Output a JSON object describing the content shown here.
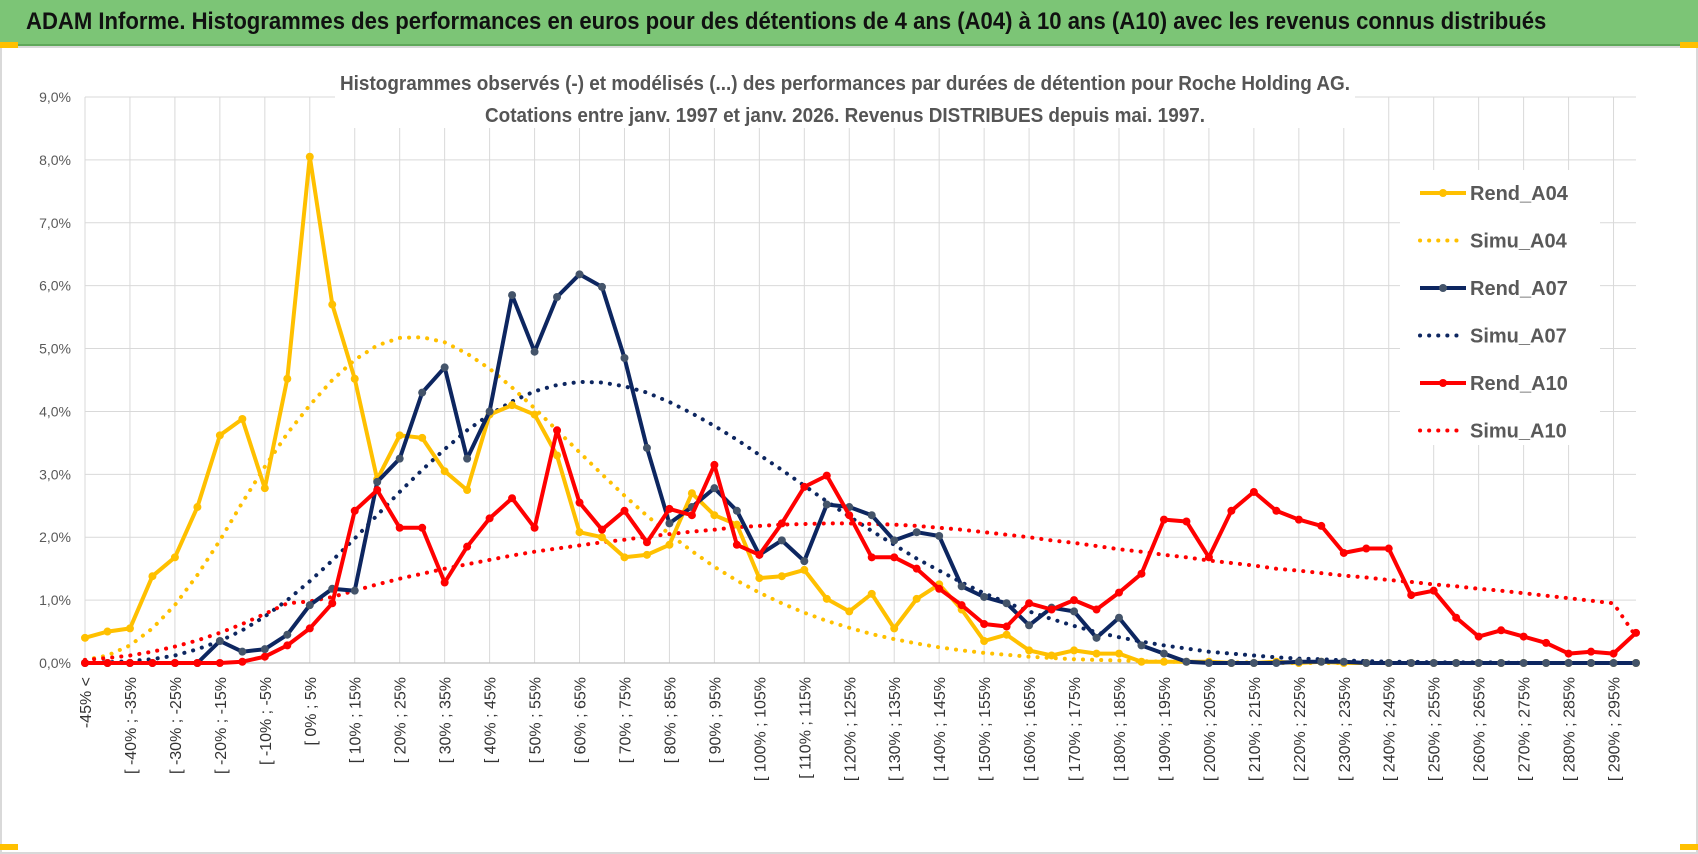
{
  "header": {
    "title": "ADAM Informe. Histogrammes des performances en euros pour des détentions de 4 ans (A04) à 10 ans (A10) avec les revenus connus distribués"
  },
  "colors": {
    "header_bg": "#7cc576",
    "A04": "#ffc000",
    "A07": "#0d2660",
    "A10": "#ff0000",
    "grid": "#d9d9d9"
  },
  "chart_data": {
    "type": "line",
    "title": "Histogrammes observés (-) et modélisés (...) des performances par durées de détention pour Roche Holding AG.",
    "subtitle": "Cotations entre janv. 1997 et janv. 2026. Revenus DISTRIBUES depuis mai. 1997.",
    "ylim": [
      0,
      9
    ],
    "yticks": [
      "0,0%",
      "1,0%",
      "2,0%",
      "3,0%",
      "4,0%",
      "5,0%",
      "6,0%",
      "7,0%",
      "8,0%",
      "9,0%"
    ],
    "x_labels": [
      "-45% <",
      "[ -40% ; -35%",
      "[ -30% ; -25%",
      "[ -20% ; -15%",
      "[ -10% ; -5%",
      "[ 0% ; 5%",
      "[ 10% ; 15%",
      "[ 20% ; 25%",
      "[ 30% ; 35%",
      "[ 40% ; 45%",
      "[ 50% ; 55%",
      "[ 60% ; 65%",
      "[ 70% ; 75%",
      "[ 80% ; 85%",
      "[ 90% ; 95%",
      "[ 100% ; 105%",
      "[ 110% ; 115%",
      "[ 120% ; 125%",
      "[ 130% ; 135%",
      "[ 140% ; 145%",
      "[ 150% ; 155%",
      "[ 160% ; 165%",
      "[ 170% ; 175%",
      "[ 180% ; 185%",
      "[ 190% ; 195%",
      "[ 200% ; 205%",
      "[ 210% ; 215%",
      "[ 220% ; 225%",
      "[ 230% ; 235%",
      "[ 240% ; 245%",
      "[ 250% ; 255%",
      "[ 260% ; 265%",
      "[ 270% ; 275%",
      "[ 280% ; 285%",
      "[ 290% ; 295%"
    ],
    "legend_position": "right",
    "grid": true,
    "series": [
      {
        "name": "Rend_A04",
        "style": "solid",
        "color": "#ffc000",
        "values": [
          0.4,
          0.5,
          0.55,
          1.38,
          1.68,
          2.48,
          3.62,
          3.88,
          2.78,
          4.52,
          8.05,
          5.7,
          4.52,
          2.92,
          3.62,
          3.58,
          3.05,
          2.75,
          3.95,
          4.1,
          3.95,
          3.3,
          2.08,
          2.0,
          1.68,
          1.72,
          1.88,
          2.7,
          2.35,
          2.2,
          1.35,
          1.38,
          1.48,
          1.02,
          0.82,
          1.1,
          0.55,
          1.02,
          1.25,
          0.85,
          0.35,
          0.45,
          0.2,
          0.12,
          0.2,
          0.15,
          0.15,
          0.02,
          0.02,
          0.02,
          0.02,
          0.0,
          0.0,
          0.02,
          0.0,
          0.02,
          0.0,
          0.0,
          0.0,
          0.0,
          0.0,
          0.0,
          0.0,
          0.0,
          0.0,
          0.0,
          0.0,
          0.0,
          0.0,
          0.0
        ]
      },
      {
        "name": "Simu_A04",
        "style": "dotted",
        "color": "#ffc000",
        "values": [
          0.05,
          0.12,
          0.28,
          0.55,
          0.92,
          1.4,
          1.95,
          2.55,
          3.12,
          3.65,
          4.1,
          4.5,
          4.82,
          5.05,
          5.17,
          5.18,
          5.1,
          4.92,
          4.68,
          4.38,
          4.05,
          3.7,
          3.35,
          3.0,
          2.66,
          2.34,
          2.05,
          1.78,
          1.53,
          1.31,
          1.12,
          0.95,
          0.8,
          0.67,
          0.56,
          0.46,
          0.38,
          0.31,
          0.25,
          0.2,
          0.16,
          0.13,
          0.1,
          0.08,
          0.06,
          0.05,
          0.04,
          0.03,
          0.02,
          0.02,
          0.01,
          0.01,
          0.01,
          0.0,
          0.0,
          0.0,
          0.0,
          0.0,
          0.0,
          0.0,
          0.0,
          0.0,
          0.0,
          0.0,
          0.0,
          0.0,
          0.0,
          0.0,
          0.0,
          0.0
        ]
      },
      {
        "name": "Rend_A07",
        "style": "solid",
        "color": "#0d2660",
        "values": [
          0.0,
          0.0,
          0.0,
          0.0,
          0.0,
          0.0,
          0.35,
          0.18,
          0.22,
          0.45,
          0.92,
          1.18,
          1.15,
          2.88,
          3.25,
          4.3,
          4.7,
          3.25,
          4.0,
          5.85,
          4.95,
          5.82,
          6.18,
          5.98,
          4.85,
          3.42,
          2.22,
          2.48,
          2.78,
          2.42,
          1.72,
          1.95,
          1.62,
          2.52,
          2.48,
          2.35,
          1.95,
          2.08,
          2.02,
          1.22,
          1.05,
          0.95,
          0.6,
          0.88,
          0.82,
          0.4,
          0.72,
          0.28,
          0.15,
          0.02,
          0.0,
          0.0,
          0.0,
          0.0,
          0.02,
          0.02,
          0.02,
          0.0,
          0.0,
          0.0,
          0.0,
          0.0,
          0.0,
          0.0,
          0.0,
          0.0,
          0.0,
          0.0,
          0.0,
          0.0
        ]
      },
      {
        "name": "Simu_A07",
        "style": "dotted",
        "color": "#0d2660",
        "values": [
          0.0,
          0.01,
          0.03,
          0.06,
          0.12,
          0.22,
          0.35,
          0.52,
          0.74,
          1.0,
          1.3,
          1.63,
          1.98,
          2.35,
          2.72,
          3.07,
          3.4,
          3.7,
          3.95,
          4.16,
          4.32,
          4.42,
          4.47,
          4.46,
          4.4,
          4.3,
          4.15,
          3.97,
          3.77,
          3.55,
          3.31,
          3.07,
          2.82,
          2.57,
          2.33,
          2.1,
          1.88,
          1.66,
          1.47,
          1.28,
          1.11,
          0.96,
          0.82,
          0.7,
          0.59,
          0.49,
          0.41,
          0.34,
          0.28,
          0.23,
          0.18,
          0.15,
          0.12,
          0.09,
          0.07,
          0.06,
          0.04,
          0.03,
          0.02,
          0.02,
          0.01,
          0.01,
          0.01,
          0.01,
          0.0,
          0.0,
          0.0,
          0.0,
          0.0,
          0.0
        ]
      },
      {
        "name": "Rend_A10",
        "style": "solid",
        "color": "#ff0000",
        "values": [
          0.0,
          0.0,
          0.0,
          0.0,
          0.0,
          0.0,
          0.0,
          0.02,
          0.1,
          0.28,
          0.55,
          0.95,
          2.42,
          2.75,
          2.15,
          2.15,
          1.28,
          1.85,
          2.3,
          2.62,
          2.15,
          3.7,
          2.55,
          2.12,
          2.42,
          1.92,
          2.45,
          2.35,
          3.15,
          1.88,
          1.72,
          2.22,
          2.8,
          2.98,
          2.35,
          1.68,
          1.68,
          1.5,
          1.18,
          0.92,
          0.62,
          0.58,
          0.95,
          0.85,
          1.0,
          0.85,
          1.12,
          1.42,
          2.28,
          2.25,
          1.68,
          2.42,
          2.72,
          2.42,
          2.28,
          2.18,
          1.75,
          1.82,
          1.82,
          1.08,
          1.15,
          0.72,
          0.42,
          0.52,
          0.42,
          0.32,
          0.15,
          0.18,
          0.15,
          0.48
        ]
      },
      {
        "name": "Simu_A10",
        "style": "dotted",
        "color": "#ff0000",
        "values": [
          0.05,
          0.08,
          0.12,
          0.18,
          0.26,
          0.36,
          0.48,
          0.62,
          0.78,
          0.95,
          0.98,
          1.05,
          1.15,
          1.25,
          1.34,
          1.42,
          1.5,
          1.57,
          1.64,
          1.71,
          1.77,
          1.82,
          1.87,
          1.92,
          1.96,
          2.01,
          2.05,
          2.09,
          2.12,
          2.16,
          2.18,
          2.2,
          2.21,
          2.22,
          2.22,
          2.21,
          2.2,
          2.18,
          2.15,
          2.12,
          2.08,
          2.04,
          2.0,
          1.95,
          1.91,
          1.86,
          1.81,
          1.77,
          1.72,
          1.68,
          1.63,
          1.59,
          1.55,
          1.5,
          1.47,
          1.43,
          1.39,
          1.36,
          1.32,
          1.29,
          1.25,
          1.22,
          1.18,
          1.15,
          1.11,
          1.07,
          1.03,
          0.99,
          0.95,
          0.42
        ]
      }
    ]
  }
}
